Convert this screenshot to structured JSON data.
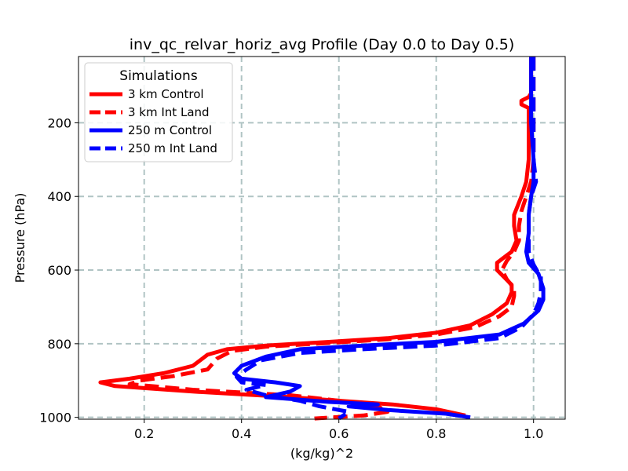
{
  "chart_data": {
    "type": "line",
    "title": "inv_qc_relvar_horiz_avg Profile (Day 0.0 to Day 0.5)",
    "xlabel": "(kg/kg)^2",
    "ylabel": "Pressure (hPa)",
    "xlim": [
      0.065,
      1.065
    ],
    "ylim": [
      1005,
      20
    ],
    "y_inverted": true,
    "grid": true,
    "x_ticks": [
      0.2,
      0.4,
      0.6,
      0.8,
      1.0
    ],
    "x_tick_labels": [
      "0.2",
      "0.4",
      "0.6",
      "0.8",
      "1.0"
    ],
    "y_ticks": [
      200,
      400,
      600,
      800,
      1000
    ],
    "y_tick_labels": [
      "200",
      "400",
      "600",
      "800",
      "1000"
    ],
    "legend": {
      "title": "Simulations",
      "placement": "upper-left"
    },
    "series": [
      {
        "name": "3 km Control",
        "color": "#ff0000",
        "dash": "solid",
        "points": [
          [
            0.995,
            20
          ],
          [
            0.995,
            120
          ],
          [
            0.99,
            130
          ],
          [
            0.975,
            140
          ],
          [
            0.975,
            150
          ],
          [
            0.99,
            160
          ],
          [
            0.99,
            200
          ],
          [
            0.99,
            300
          ],
          [
            0.985,
            360
          ],
          [
            0.975,
            400
          ],
          [
            0.96,
            450
          ],
          [
            0.96,
            480
          ],
          [
            0.965,
            520
          ],
          [
            0.955,
            550
          ],
          [
            0.935,
            570
          ],
          [
            0.925,
            580
          ],
          [
            0.925,
            600
          ],
          [
            0.94,
            620
          ],
          [
            0.955,
            640
          ],
          [
            0.955,
            660
          ],
          [
            0.945,
            690
          ],
          [
            0.915,
            720
          ],
          [
            0.87,
            750
          ],
          [
            0.8,
            770
          ],
          [
            0.7,
            785
          ],
          [
            0.58,
            795
          ],
          [
            0.45,
            805
          ],
          [
            0.37,
            815
          ],
          [
            0.33,
            830
          ],
          [
            0.3,
            860
          ],
          [
            0.24,
            880
          ],
          [
            0.17,
            895
          ],
          [
            0.11,
            905
          ],
          [
            0.14,
            915
          ],
          [
            0.3,
            930
          ],
          [
            0.5,
            945
          ],
          [
            0.6,
            955
          ],
          [
            0.71,
            965
          ],
          [
            0.8,
            978
          ],
          [
            0.86,
            995
          ]
        ]
      },
      {
        "name": "3 km Int Land",
        "color": "#ff0000",
        "dash": "dashed",
        "points": [
          [
            1.0,
            20
          ],
          [
            1.0,
            200
          ],
          [
            1.0,
            300
          ],
          [
            0.995,
            360
          ],
          [
            0.985,
            400
          ],
          [
            0.975,
            440
          ],
          [
            0.97,
            480
          ],
          [
            0.97,
            520
          ],
          [
            0.96,
            550
          ],
          [
            0.945,
            575
          ],
          [
            0.935,
            600
          ],
          [
            0.945,
            625
          ],
          [
            0.96,
            650
          ],
          [
            0.96,
            670
          ],
          [
            0.955,
            700
          ],
          [
            0.93,
            725
          ],
          [
            0.88,
            755
          ],
          [
            0.8,
            775
          ],
          [
            0.7,
            788
          ],
          [
            0.58,
            798
          ],
          [
            0.45,
            808
          ],
          [
            0.38,
            820
          ],
          [
            0.35,
            840
          ],
          [
            0.33,
            870
          ],
          [
            0.26,
            888
          ],
          [
            0.19,
            900
          ],
          [
            0.17,
            910
          ],
          [
            0.3,
            925
          ],
          [
            0.5,
            940
          ],
          [
            0.6,
            955
          ],
          [
            0.68,
            970
          ],
          [
            0.7,
            985
          ],
          [
            0.65,
            995
          ],
          [
            0.55,
            1003
          ]
        ]
      },
      {
        "name": "250 m Control",
        "color": "#0000ff",
        "dash": "solid",
        "points": [
          [
            0.995,
            20
          ],
          [
            0.995,
            200
          ],
          [
            1.0,
            300
          ],
          [
            1.0,
            360
          ],
          [
            0.995,
            400
          ],
          [
            0.99,
            450
          ],
          [
            0.99,
            500
          ],
          [
            0.985,
            550
          ],
          [
            0.99,
            580
          ],
          [
            1.01,
            610
          ],
          [
            1.02,
            650
          ],
          [
            1.02,
            680
          ],
          [
            1.01,
            710
          ],
          [
            0.98,
            745
          ],
          [
            0.93,
            775
          ],
          [
            0.8,
            795
          ],
          [
            0.65,
            805
          ],
          [
            0.52,
            815
          ],
          [
            0.45,
            835
          ],
          [
            0.4,
            860
          ],
          [
            0.385,
            880
          ],
          [
            0.4,
            895
          ],
          [
            0.47,
            905
          ],
          [
            0.52,
            915
          ],
          [
            0.5,
            930
          ],
          [
            0.45,
            945
          ],
          [
            0.58,
            958
          ],
          [
            0.68,
            965
          ],
          [
            0.62,
            970
          ],
          [
            0.7,
            980
          ],
          [
            0.82,
            990
          ],
          [
            0.87,
            1000
          ]
        ]
      },
      {
        "name": "250 m Int Land",
        "color": "#0000ff",
        "dash": "dashed",
        "points": [
          [
            1.0,
            20
          ],
          [
            1.0,
            200
          ],
          [
            1.0,
            300
          ],
          [
            1.005,
            360
          ],
          [
            0.995,
            400
          ],
          [
            0.99,
            450
          ],
          [
            0.99,
            500
          ],
          [
            0.99,
            550
          ],
          [
            1.0,
            585
          ],
          [
            1.015,
            620
          ],
          [
            1.015,
            660
          ],
          [
            1.01,
            690
          ],
          [
            1.0,
            720
          ],
          [
            0.975,
            755
          ],
          [
            0.93,
            785
          ],
          [
            0.8,
            805
          ],
          [
            0.65,
            815
          ],
          [
            0.52,
            825
          ],
          [
            0.44,
            845
          ],
          [
            0.41,
            870
          ],
          [
            0.39,
            890
          ],
          [
            0.4,
            905
          ],
          [
            0.45,
            912
          ],
          [
            0.41,
            925
          ],
          [
            0.45,
            940
          ],
          [
            0.52,
            955
          ],
          [
            0.56,
            970
          ],
          [
            0.62,
            985
          ],
          [
            0.6,
            1003
          ]
        ]
      }
    ]
  }
}
